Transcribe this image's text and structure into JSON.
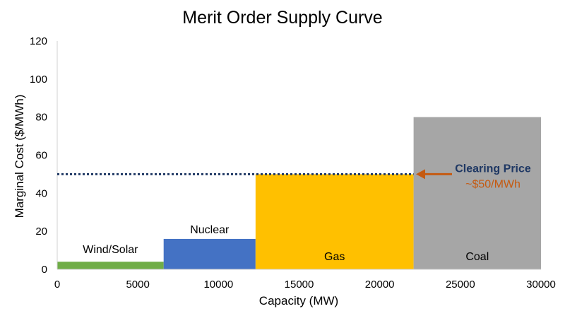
{
  "chart_data": {
    "type": "bar",
    "title": "Merit Order Supply Curve",
    "xlabel": "Capacity (MW)",
    "ylabel": "Marginal Cost ($/MWh)",
    "xlim": [
      0,
      30000
    ],
    "ylim": [
      0,
      120
    ],
    "x_ticks": [
      0,
      5000,
      10000,
      15000,
      20000,
      25000,
      30000
    ],
    "y_ticks": [
      0,
      20,
      40,
      60,
      80,
      100,
      120
    ],
    "grid": false,
    "legend": "none",
    "segments": [
      {
        "label": "Wind/Solar",
        "x_start": 0,
        "x_end": 6600,
        "value": 4,
        "color": "#70ad47"
      },
      {
        "label": "Nuclear",
        "x_start": 6600,
        "x_end": 12300,
        "value": 16,
        "color": "#4472c4"
      },
      {
        "label": "Gas",
        "x_start": 12300,
        "x_end": 22100,
        "value": 50,
        "color": "#ffc000"
      },
      {
        "label": "Coal",
        "x_start": 22100,
        "x_end": 30000,
        "value": 80,
        "color": "#a6a6a6"
      }
    ],
    "clearing_price": {
      "value": 50,
      "line_color": "#1f3864",
      "label": "Clearing Price",
      "label_color": "#1f3864",
      "sublabel": "~$50/MWh",
      "sublabel_color": "#c55a11",
      "arrow_color": "#c55a11"
    }
  }
}
